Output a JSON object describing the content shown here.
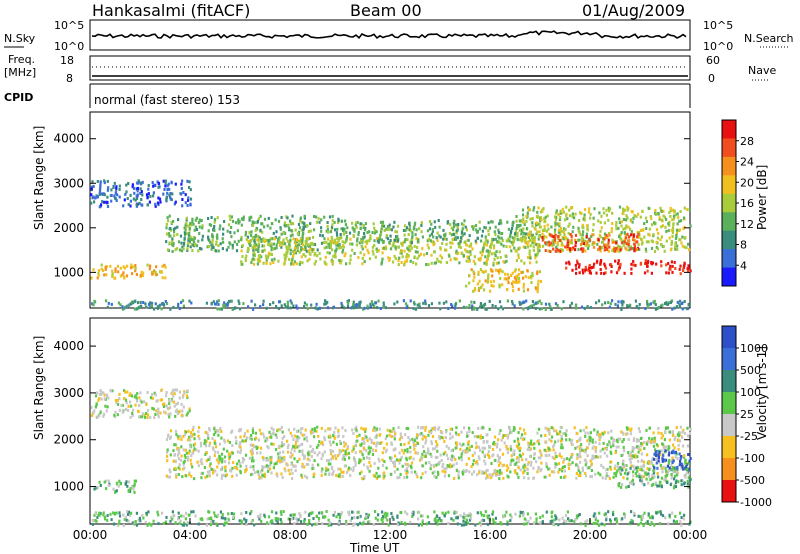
{
  "header": {
    "station": "Hankasalmi (fitACF)",
    "beam": "Beam 00",
    "date": "01/Aug/2009"
  },
  "strip": {
    "nsky_label": "N.Sky",
    "nsky_top": "10^5",
    "nsky_bot": "10^0",
    "nsearch_label": "N.Search",
    "nsearch_top": "10^5",
    "nsearch_bot": "10^0",
    "freq_label_1": "Freq.",
    "freq_label_2": "[MHz]",
    "freq_top": "18",
    "freq_bot": "8",
    "nave_label": "Nave",
    "nave_top": "60",
    "nave_bot": "0",
    "cpid_label": "CPID",
    "cpid_text": "normal (fast stereo) 153"
  },
  "chart_data": [
    {
      "type": "heatmap",
      "title": "Power",
      "ylabel": "Slant Range [km]",
      "xlabel": "Time UT",
      "xlim": [
        "00:00",
        "24:00"
      ],
      "ylim": [
        200,
        4600
      ],
      "y_ticks": [
        "1000",
        "2000",
        "3000",
        "4000"
      ],
      "colorbar_label": "Power [dB]",
      "colorbar_ticks": [
        "4",
        "8",
        "12",
        "16",
        "20",
        "24",
        "28"
      ],
      "colorbar_range": [
        0,
        30
      ],
      "colors": [
        "#1a1aff",
        "#3b6fd8",
        "#3a8c7c",
        "#5bb05b",
        "#a8cc3a",
        "#f0c020",
        "#f5901e",
        "#f04e1e",
        "#e81010"
      ],
      "bands": [
        {
          "t": [
            0,
            24
          ],
          "r": [
            200,
            400
          ],
          "level": 2
        },
        {
          "t": [
            0,
            4
          ],
          "r": [
            2500,
            3100
          ],
          "level": 1
        },
        {
          "t": [
            3,
            10
          ],
          "r": [
            1500,
            2300
          ],
          "level": 3
        },
        {
          "t": [
            6,
            18
          ],
          "r": [
            1200,
            1800
          ],
          "level": 4
        },
        {
          "t": [
            10,
            18
          ],
          "r": [
            1700,
            2200
          ],
          "level": 3
        },
        {
          "t": [
            17,
            24
          ],
          "r": [
            1500,
            2500
          ],
          "level": 4
        },
        {
          "t": [
            18,
            22
          ],
          "r": [
            1500,
            1900
          ],
          "level": 7
        },
        {
          "t": [
            19,
            24
          ],
          "r": [
            1000,
            1300
          ],
          "level": 8
        },
        {
          "t": [
            0,
            3
          ],
          "r": [
            900,
            1200
          ],
          "level": 5
        },
        {
          "t": [
            15,
            18
          ],
          "r": [
            600,
            1100
          ],
          "level": 5
        }
      ]
    },
    {
      "type": "heatmap",
      "title": "Velocity",
      "ylabel": "Slant Range [km]",
      "xlabel": "Time UT",
      "xlim": [
        "00:00",
        "24:00"
      ],
      "ylim": [
        200,
        4600
      ],
      "y_ticks": [
        "1000",
        "2000",
        "3000",
        "4000"
      ],
      "x_ticks": [
        "00:00",
        "04:00",
        "08:00",
        "12:00",
        "16:00",
        "20:00",
        "00:00"
      ],
      "colorbar_label": "Velocity [m s-1]",
      "colorbar_ticks": [
        "1000",
        "500",
        "100",
        "25",
        "-25",
        "-100",
        "-500",
        "-1000"
      ],
      "colors": [
        "#2d4fc8",
        "#3b6fd8",
        "#3a8c7c",
        "#5bc84a",
        "#c8c8c8",
        "#f5c020",
        "#f5901e",
        "#e81010"
      ],
      "bands": [
        {
          "t": [
            0,
            4
          ],
          "r": [
            2500,
            3100
          ],
          "level": 4
        },
        {
          "t": [
            3,
            24
          ],
          "r": [
            1200,
            2300
          ],
          "level": 4
        },
        {
          "t": [
            0,
            2
          ],
          "r": [
            900,
            1150
          ],
          "level": 3
        },
        {
          "t": [
            21,
            24
          ],
          "r": [
            1000,
            1500
          ],
          "level": 3
        },
        {
          "t": [
            22.5,
            24
          ],
          "r": [
            1400,
            1800
          ],
          "level": 0
        },
        {
          "t": [
            0,
            24
          ],
          "r": [
            200,
            500
          ],
          "level": 3
        }
      ]
    }
  ]
}
